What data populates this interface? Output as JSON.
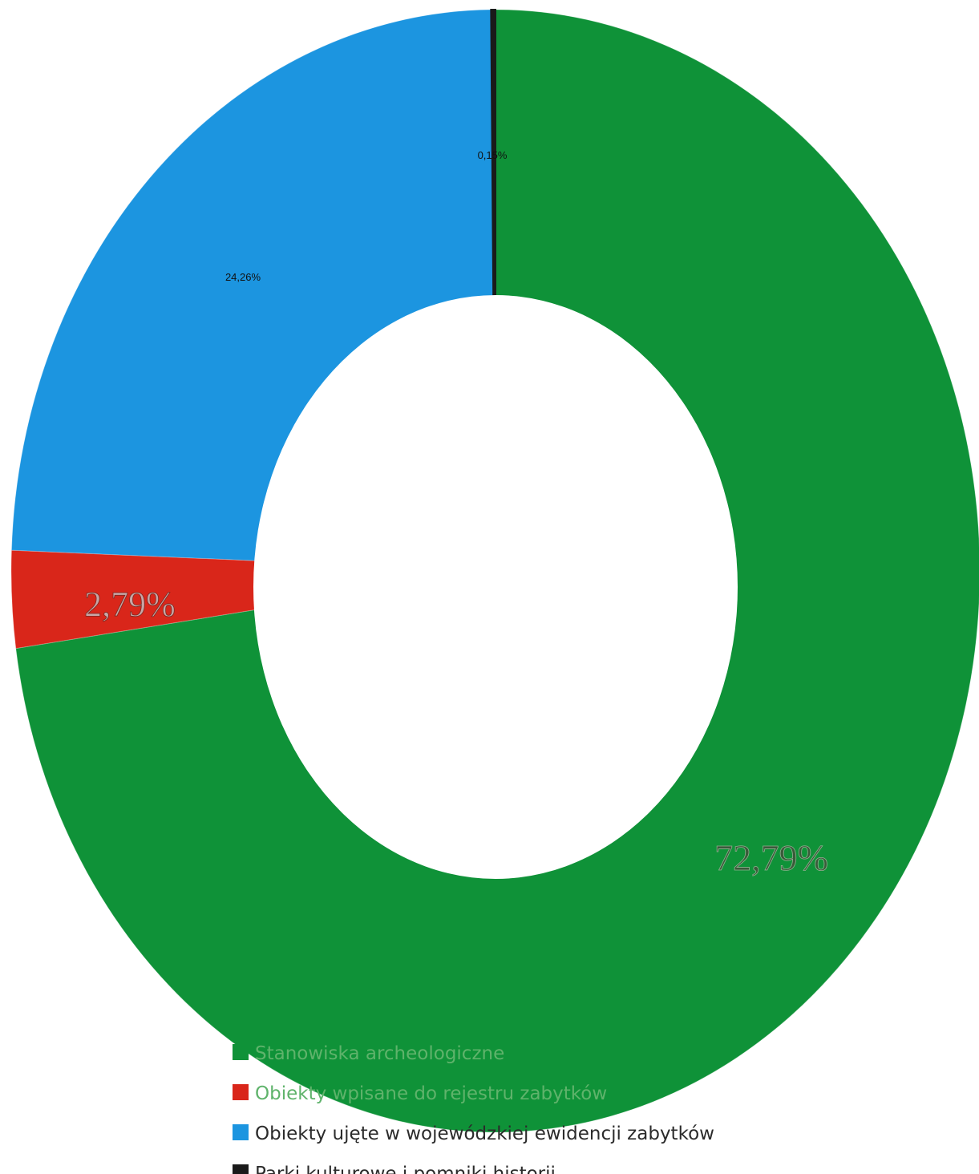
{
  "chart_data": {
    "type": "pie",
    "donut": true,
    "slices": [
      {
        "label": "Stanowiska archeologiczne",
        "value": 72.79,
        "display": "72,79%",
        "color": "#0f9238"
      },
      {
        "label": "Obiekty wpisane do rejestru zabytków",
        "value": 2.79,
        "display": "2,79%",
        "color": "#d9261a"
      },
      {
        "label": "Obiekty ujęte w wojewódzkiej ewidencji zabytków",
        "value": 24.26,
        "display": "24,26%",
        "color": "#1c95e0"
      },
      {
        "label": "Parki kulturowe i pomniki historii",
        "value": 0.15,
        "display": "0,15%",
        "color": "#1a1a1a"
      }
    ],
    "legend_position": "bottom",
    "start_angle_deg": 0,
    "direction": "clockwise"
  }
}
